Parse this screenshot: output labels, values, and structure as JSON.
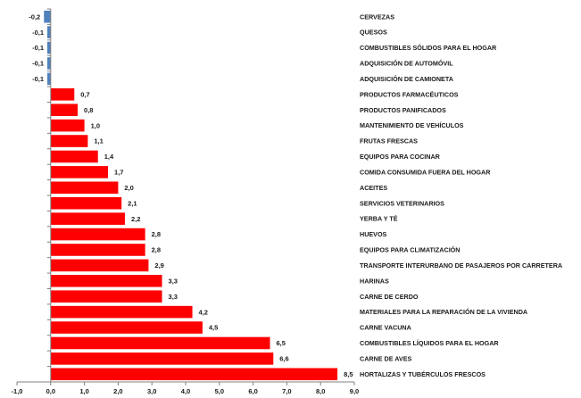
{
  "chart_data": {
    "type": "bar",
    "orientation": "horizontal",
    "categories": [
      "CERVEZAS",
      "QUESOS",
      "COMBUSTIBLES SÓLIDOS PARA EL HOGAR",
      "ADQUISICIÓN DE AUTOMÓVIL",
      "ADQUISICIÓN DE CAMIONETA",
      "PRODUCTOS FARMACÉUTICOS",
      "PRODUCTOS PANIFICADOS",
      "MANTENIMIENTO DE VEHÍCULOS",
      "FRUTAS FRESCAS",
      "EQUIPOS PARA COCINAR",
      "COMIDA CONSUMIDA FUERA DEL HOGAR",
      "ACEITES",
      "SERVICIOS VETERINARIOS",
      "YERBA Y TÉ",
      "HUEVOS",
      "EQUIPOS PARA CLIMATIZACIÓN",
      "TRANSPORTE INTERURBANO DE PASAJEROS POR CARRETERA",
      "HARINAS",
      "CARNE DE CERDO",
      "MATERIALES PARA LA REPARACIÓN DE LA VIVIENDA",
      "CARNE VACUNA",
      "COMBUSTIBLES LÍQUIDOS PARA EL HOGAR",
      "CARNE DE AVES",
      "HORTALIZAS Y TUBÉRCULOS FRESCOS"
    ],
    "values": [
      -0.2,
      -0.1,
      -0.1,
      -0.1,
      -0.1,
      0.7,
      0.8,
      1.0,
      1.1,
      1.4,
      1.7,
      2.0,
      2.1,
      2.2,
      2.8,
      2.8,
      2.9,
      3.3,
      3.3,
      4.2,
      4.5,
      6.5,
      6.6,
      8.5
    ],
    "value_labels": [
      "-0,2",
      "-0,1",
      "-0,1",
      "-0,1",
      "-0,1",
      "0,7",
      "0,8",
      "1,0",
      "1,1",
      "1,4",
      "1,7",
      "2,0",
      "2,1",
      "2,2",
      "2,8",
      "2,8",
      "2,9",
      "3,3",
      "3,3",
      "4,2",
      "4,5",
      "6,5",
      "6,6",
      "8,5"
    ],
    "xlim": [
      -1.0,
      9.0
    ],
    "x_ticks": [
      -1,
      0,
      1,
      2,
      3,
      4,
      5,
      6,
      7,
      8,
      9
    ],
    "x_tick_labels": [
      "-1,0",
      "0,0",
      "1,0",
      "2,0",
      "3,0",
      "4,0",
      "5,0",
      "6,0",
      "7,0",
      "8,0",
      "9,0"
    ],
    "title": "",
    "xlabel": "",
    "ylabel": "",
    "grid": false,
    "legend": "none",
    "colors": {
      "positive": "#ff0000",
      "negative": "#4f81bd",
      "axis": "#808080",
      "text": "#1a1a1a"
    }
  }
}
